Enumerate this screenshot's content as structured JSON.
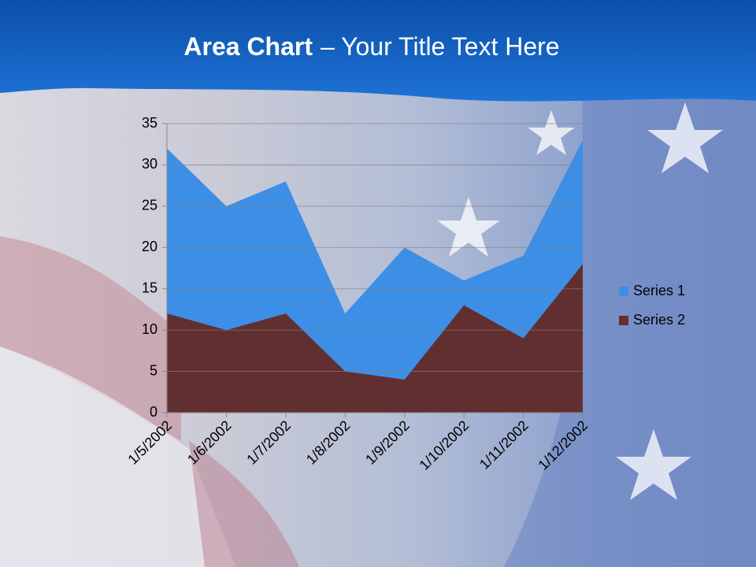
{
  "chart_data": {
    "type": "area",
    "title_parts": [
      "Area Chart",
      "– Your Title Text Here"
    ],
    "categories": [
      "1/5/2002",
      "1/6/2002",
      "1/7/2002",
      "1/8/2002",
      "1/9/2002",
      "1/10/2002",
      "1/11/2002",
      "1/12/2002"
    ],
    "series": [
      {
        "name": "Series 1",
        "color": "#3d8fe6",
        "values": [
          32,
          25,
          28,
          12,
          20,
          16,
          19,
          33
        ]
      },
      {
        "name": "Series 2",
        "color": "#622f31",
        "values": [
          12,
          10,
          12,
          5,
          4,
          13,
          9,
          18
        ]
      }
    ],
    "ylim": [
      0,
      35
    ],
    "yticks": [
      0,
      5,
      10,
      15,
      20,
      25,
      30,
      35
    ],
    "grid": true,
    "legend": "right"
  }
}
